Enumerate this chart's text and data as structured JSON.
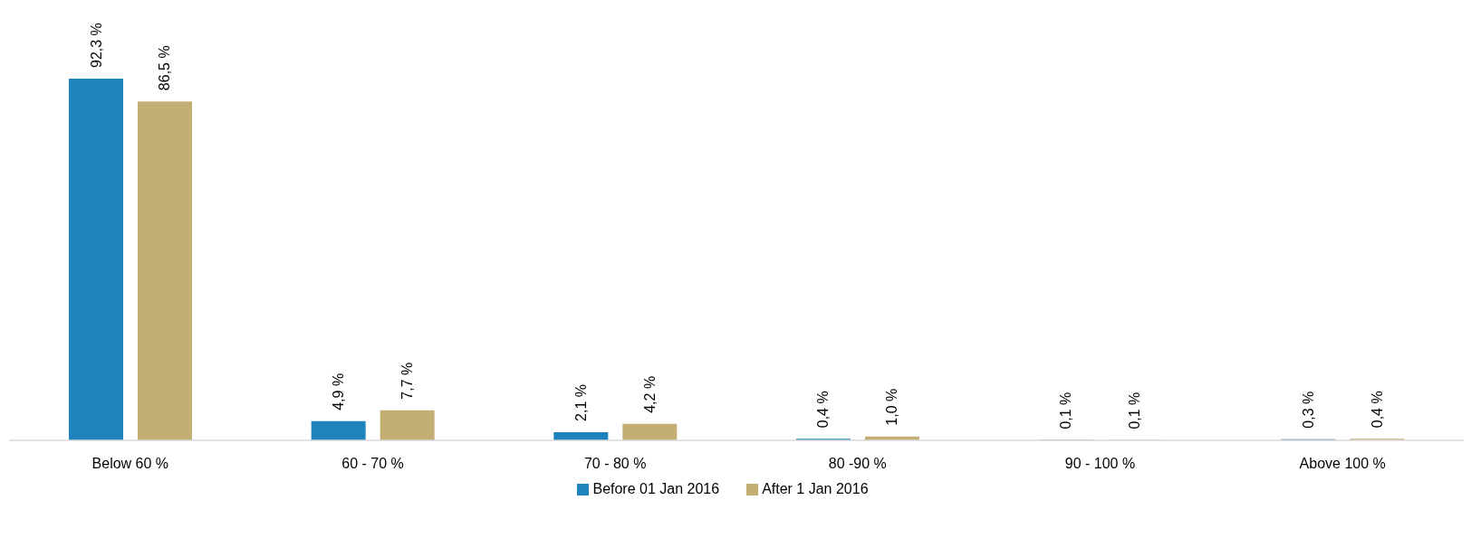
{
  "chart_data": {
    "type": "bar",
    "categories": [
      "Below 60 %",
      "60 - 70 %",
      "70 - 80 %",
      "80 -90 %",
      "90 - 100 %",
      "Above 100 %"
    ],
    "series": [
      {
        "name": "Before 01 Jan 2016",
        "color": "#1f83bd",
        "values": [
          92.3,
          4.9,
          2.1,
          0.4,
          0.1,
          0.3
        ],
        "value_labels": [
          "92,3 %",
          "4,9 %",
          "2,1 %",
          "0,4 %",
          "0,1 %",
          "0,3 %"
        ]
      },
      {
        "name": "After 1 Jan 2016",
        "color": "#c3ae74",
        "values": [
          86.5,
          7.7,
          4.2,
          1.0,
          0.1,
          0.4
        ],
        "value_labels": [
          "86,5 %",
          "7,7 %",
          "4,2 %",
          "1,0 %",
          "0,1 %",
          "0,4 %"
        ]
      }
    ],
    "legend": "bottom",
    "grid": false
  }
}
